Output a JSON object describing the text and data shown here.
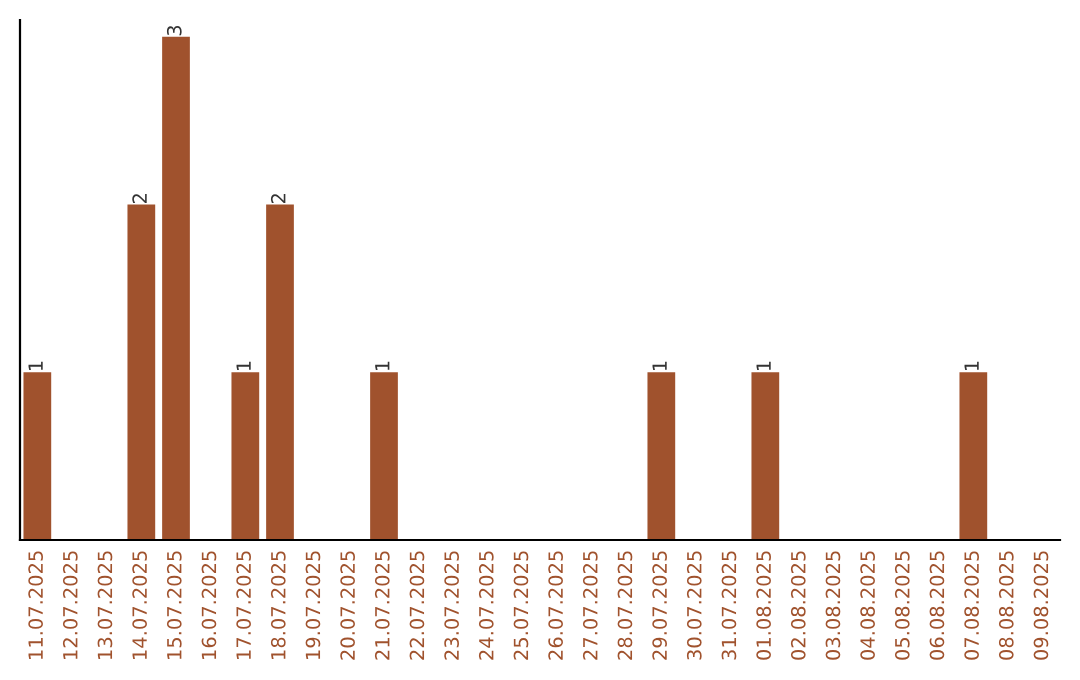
{
  "chart_data": {
    "type": "bar",
    "categories": [
      "11.07.2025",
      "12.07.2025",
      "13.07.2025",
      "14.07.2025",
      "15.07.2025",
      "16.07.2025",
      "17.07.2025",
      "18.07.2025",
      "19.07.2025",
      "20.07.2025",
      "21.07.2025",
      "22.07.2025",
      "23.07.2025",
      "24.07.2025",
      "25.07.2025",
      "26.07.2025",
      "27.07.2025",
      "28.07.2025",
      "29.07.2025",
      "30.07.2025",
      "31.07.2025",
      "01.08.2025",
      "02.08.2025",
      "03.08.2025",
      "04.08.2025",
      "05.08.2025",
      "06.08.2025",
      "07.08.2025",
      "08.08.2025",
      "09.08.2025"
    ],
    "values": [
      1,
      0,
      0,
      2,
      3,
      0,
      1,
      2,
      0,
      0,
      1,
      0,
      0,
      0,
      0,
      0,
      0,
      0,
      1,
      0,
      0,
      1,
      0,
      0,
      0,
      0,
      0,
      1,
      0,
      0
    ],
    "value_labels": [
      "1",
      null,
      null,
      "2",
      "3",
      null,
      "1",
      "2",
      null,
      null,
      "1",
      null,
      null,
      null,
      null,
      null,
      null,
      null,
      "1",
      null,
      null,
      "1",
      null,
      null,
      null,
      null,
      null,
      "1",
      null,
      null
    ],
    "color": "#a0522d",
    "ylim": [
      0,
      3.1
    ],
    "tick_labels": "x",
    "grid": false,
    "legend": false
  }
}
